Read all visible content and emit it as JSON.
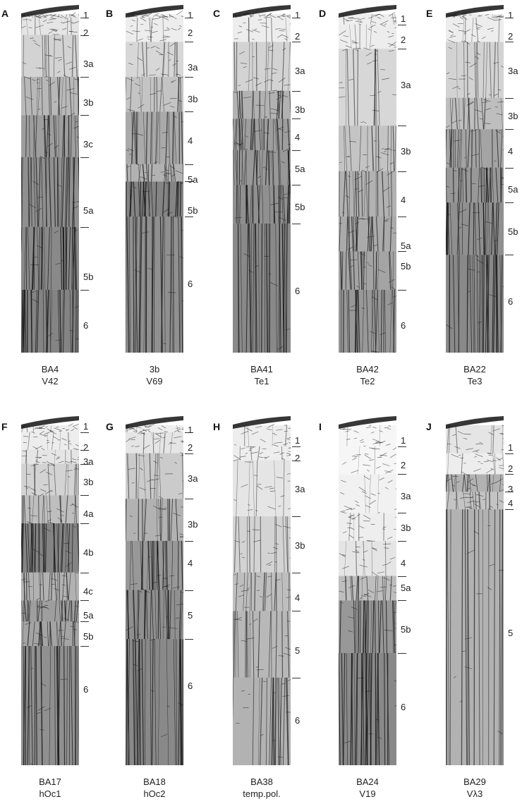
{
  "panels": [
    {
      "letter": "A",
      "area": "BA4",
      "region": "V42",
      "layers": [
        "1",
        "2",
        "3a",
        "3b",
        "3c",
        "5a",
        "5b",
        "6"
      ],
      "depths": [
        0.02,
        0.07,
        0.16,
        0.27,
        0.39,
        0.58,
        0.77,
        0.91
      ],
      "boundaries": [
        0.04,
        0.09,
        0.21,
        0.32,
        0.44,
        0.64,
        0.82
      ],
      "density": [
        0.15,
        0.2,
        0.35,
        0.55,
        0.75,
        0.85,
        0.9,
        0.95
      ]
    },
    {
      "letter": "B",
      "area": "3b",
      "region": "V69",
      "layers": [
        "1",
        "2",
        "3a",
        "3b",
        "4",
        "5a",
        "5b",
        "6"
      ],
      "depths": [
        0.02,
        0.07,
        0.17,
        0.26,
        0.38,
        0.49,
        0.58,
        0.79
      ],
      "boundaries": [
        0.04,
        0.11,
        0.21,
        0.31,
        0.46,
        0.51,
        0.61
      ],
      "density": [
        0.1,
        0.15,
        0.3,
        0.45,
        0.65,
        0.6,
        0.95,
        0.85
      ]
    },
    {
      "letter": "C",
      "area": "BA41",
      "region": "Te1",
      "layers": [
        "1",
        "2",
        "3a",
        "3b",
        "4",
        "5a",
        "5b",
        "6"
      ],
      "depths": [
        0.02,
        0.08,
        0.18,
        0.29,
        0.37,
        0.46,
        0.57,
        0.81
      ],
      "boundaries": [
        0.04,
        0.11,
        0.25,
        0.33,
        0.42,
        0.52,
        0.63
      ],
      "density": [
        0.15,
        0.15,
        0.35,
        0.6,
        0.75,
        0.8,
        0.85,
        0.9
      ]
    },
    {
      "letter": "D",
      "area": "BA42",
      "region": "Te2",
      "layers": [
        "1",
        "2",
        "3a",
        "3b",
        "4",
        "5a",
        "5b",
        "6"
      ],
      "depths": [
        0.03,
        0.09,
        0.22,
        0.41,
        0.55,
        0.68,
        0.74,
        0.91
      ],
      "boundaries": [
        0.06,
        0.13,
        0.35,
        0.48,
        0.61,
        0.71,
        0.82
      ],
      "density": [
        0.12,
        0.15,
        0.3,
        0.45,
        0.6,
        0.65,
        0.7,
        0.8
      ]
    },
    {
      "letter": "E",
      "area": "BA22",
      "region": "Te3",
      "layers": [
        "1",
        "2",
        "3a",
        "3b",
        "4",
        "5a",
        "5b",
        "6"
      ],
      "depths": [
        0.02,
        0.08,
        0.18,
        0.31,
        0.41,
        0.52,
        0.64,
        0.84
      ],
      "boundaries": [
        0.04,
        0.11,
        0.27,
        0.36,
        0.47,
        0.57,
        0.72
      ],
      "density": [
        0.12,
        0.15,
        0.35,
        0.5,
        0.7,
        0.8,
        0.85,
        0.9
      ]
    },
    {
      "letter": "F",
      "area": "BA17",
      "region": "hOc1",
      "layers": [
        "1",
        "2",
        "3a",
        "3b",
        "4a",
        "4b",
        "4c",
        "5a",
        "5b",
        "6"
      ],
      "depths": [
        0.02,
        0.08,
        0.12,
        0.18,
        0.27,
        0.38,
        0.49,
        0.56,
        0.62,
        0.77
      ],
      "boundaries": [
        0.05,
        0.1,
        0.14,
        0.23,
        0.31,
        0.45,
        0.53,
        0.59,
        0.66
      ],
      "density": [
        0.12,
        0.15,
        0.2,
        0.35,
        0.5,
        0.95,
        0.6,
        0.75,
        0.7,
        0.85
      ]
    },
    {
      "letter": "G",
      "area": "BA18",
      "region": "hOc2",
      "layers": [
        "1",
        "2",
        "3a",
        "3b",
        "4",
        "5",
        "6"
      ],
      "depths": [
        0.03,
        0.08,
        0.17,
        0.3,
        0.41,
        0.56,
        0.76
      ],
      "boundaries": [
        0.05,
        0.11,
        0.24,
        0.36,
        0.5,
        0.64
      ],
      "density": [
        0.12,
        0.2,
        0.4,
        0.6,
        0.8,
        0.85,
        0.9
      ]
    },
    {
      "letter": "H",
      "area": "BA38",
      "region": "temp.pol.",
      "layers": [
        "1",
        "2",
        "3a",
        "3b",
        "4",
        "5",
        "6"
      ],
      "depths": [
        0.06,
        0.11,
        0.2,
        0.36,
        0.51,
        0.66,
        0.86
      ],
      "boundaries": [
        0.09,
        0.13,
        0.29,
        0.45,
        0.56,
        0.75
      ],
      "density": [
        0.15,
        0.12,
        0.2,
        0.35,
        0.5,
        0.55,
        0.6
      ]
    },
    {
      "letter": "I",
      "area": "BA24",
      "region": "V19",
      "layers": [
        "1",
        "2",
        "3a",
        "3b",
        "4",
        "5a",
        "5b",
        "6"
      ],
      "depths": [
        0.06,
        0.13,
        0.22,
        0.31,
        0.41,
        0.48,
        0.6,
        0.82
      ],
      "boundaries": [
        0.09,
        0.17,
        0.28,
        0.36,
        0.46,
        0.53,
        0.68
      ],
      "density": [
        0.08,
        0.08,
        0.1,
        0.12,
        0.2,
        0.5,
        0.8,
        0.9
      ]
    },
    {
      "letter": "J",
      "area": "BA29",
      "region": "Vλ3",
      "layers": [
        "1",
        "2",
        "3",
        "4",
        "5"
      ],
      "depths": [
        0.08,
        0.14,
        0.2,
        0.24,
        0.61
      ],
      "boundaries": [
        0.11,
        0.17,
        0.22,
        0.27
      ],
      "density": [
        0.2,
        0.15,
        0.6,
        0.45,
        0.6
      ]
    }
  ],
  "colors": {
    "ink": "#141414",
    "paper": "#ffffff",
    "label": "#222222"
  }
}
